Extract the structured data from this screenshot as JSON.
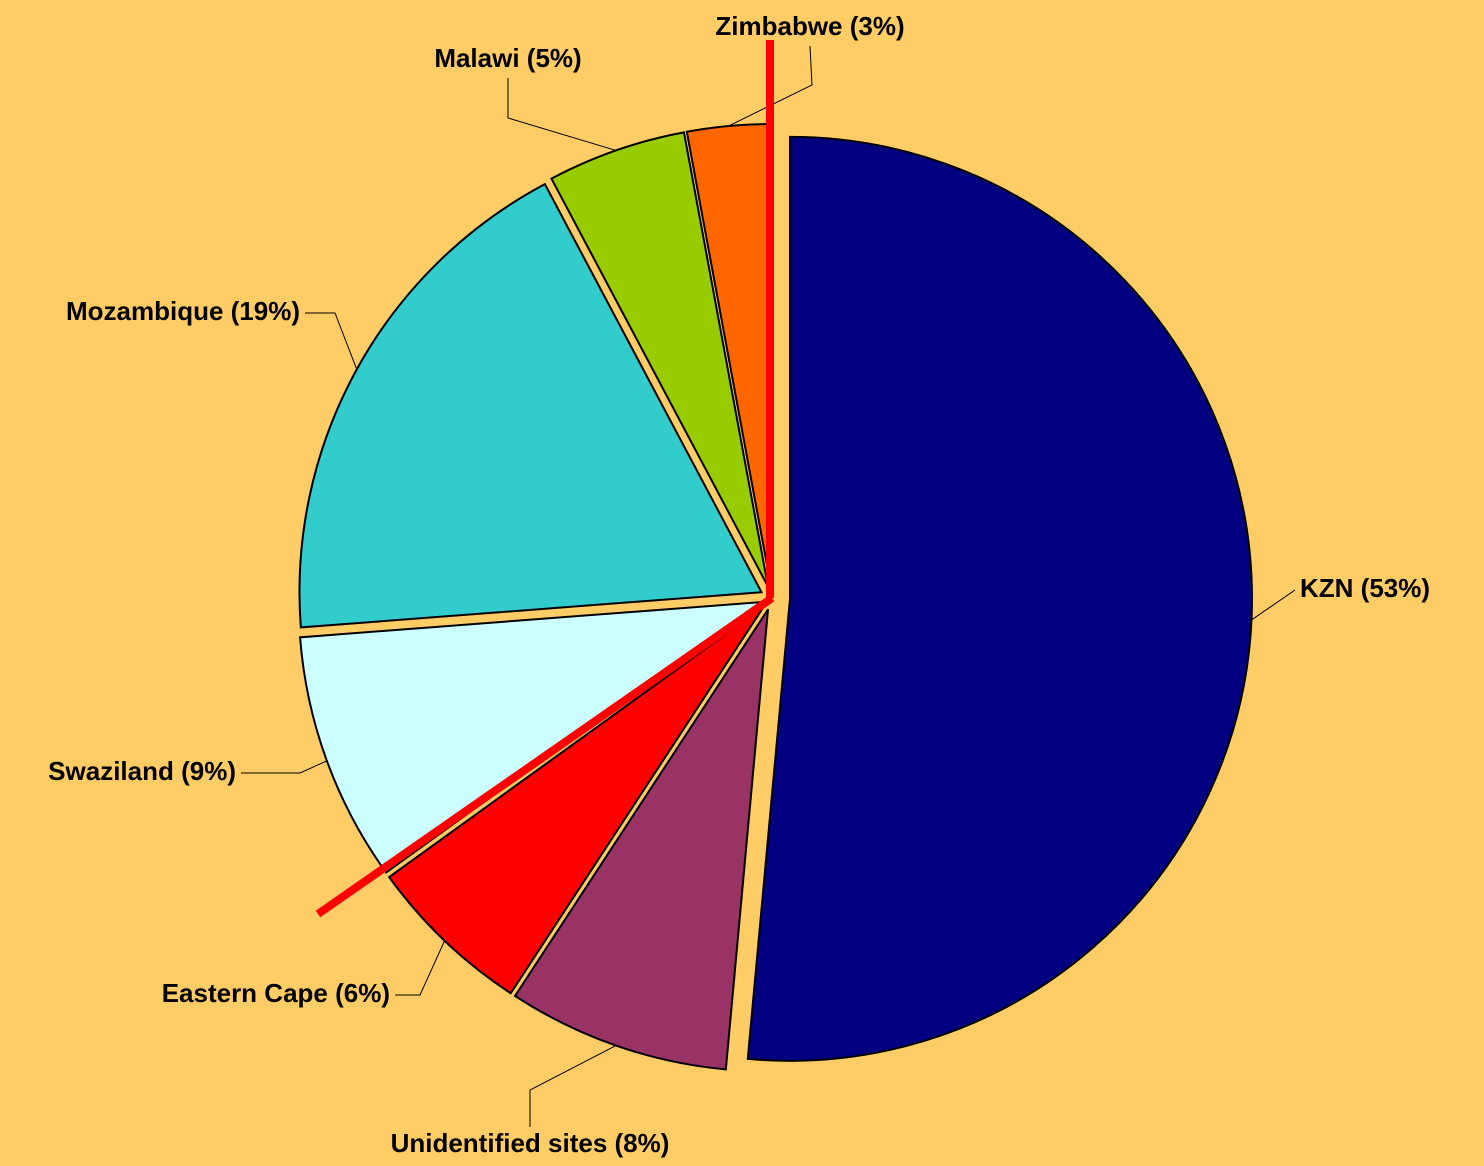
{
  "chart_data": {
    "type": "pie",
    "categories": [
      "KZN (53%)",
      "Unidentified sites (8%)",
      "Eastern Cape (6%)",
      "Swaziland (9%)",
      "Mozambique (19%)",
      "Malawi (5%)",
      "Zimbabwe (3%)"
    ],
    "values": [
      53,
      8,
      6,
      9,
      19,
      5,
      3
    ],
    "colors": [
      "#000080",
      "#993366",
      "#ff0000",
      "#ccffff",
      "#33cccc",
      "#99cc00",
      "#ff6600"
    ]
  }
}
